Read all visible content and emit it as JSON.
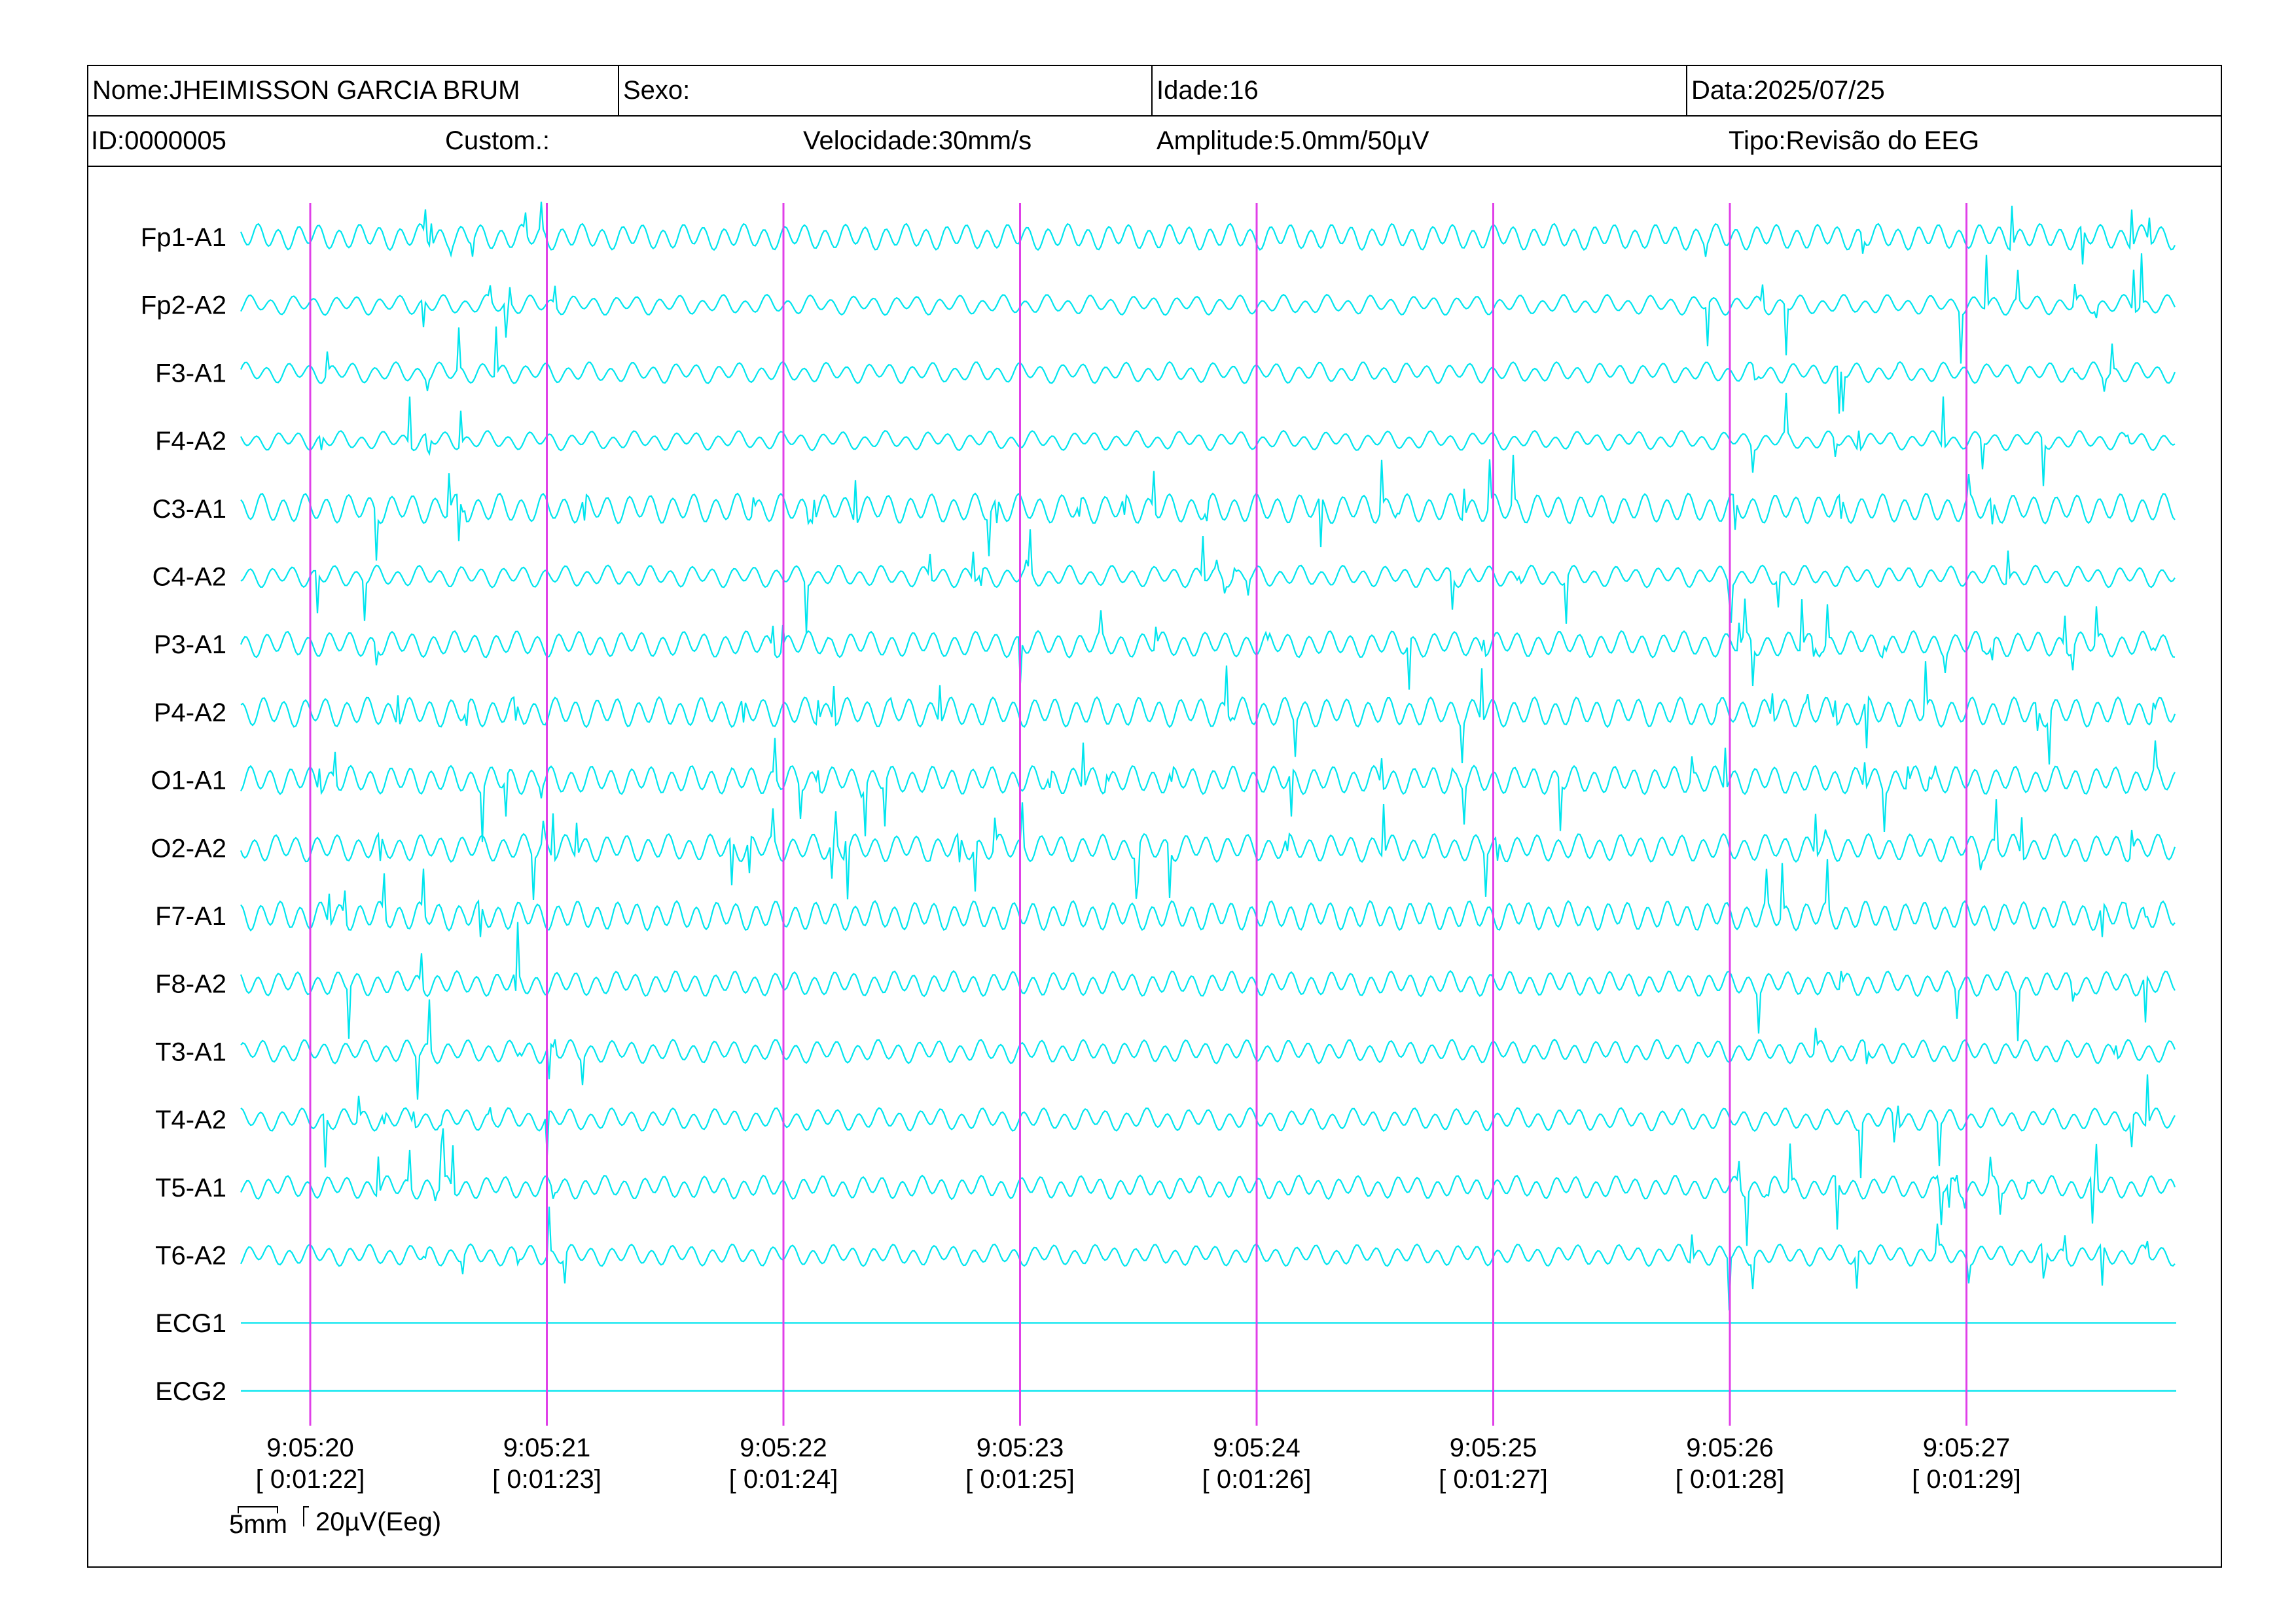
{
  "header": {
    "name": "Nome:JHEIMISSON GARCIA BRUM",
    "sex": "Sexo:",
    "age": "Idade:16",
    "date": "Data:2025/07/25",
    "id": "ID:0000005",
    "custom": "Custom.:",
    "speed": "Velocidade:30mm/s",
    "amplitude": "Amplitude:5.0mm/50µV",
    "type": "Tipo:Revisão do EEG"
  },
  "channels": [
    "Fp1-A1",
    "Fp2-A2",
    "F3-A1",
    "F4-A2",
    "C3-A1",
    "C4-A2",
    "P3-A1",
    "P4-A2",
    "O1-A1",
    "O2-A2",
    "F7-A1",
    "F8-A2",
    "T3-A1",
    "T4-A2",
    "T5-A1",
    "T6-A2",
    "ECG1",
    "ECG2"
  ],
  "time_markers": [
    {
      "time": "9:05:20",
      "elapsed": "[ 0:01:22]"
    },
    {
      "time": "9:05:21",
      "elapsed": "[ 0:01:23]"
    },
    {
      "time": "9:05:22",
      "elapsed": "[ 0:01:24]"
    },
    {
      "time": "9:05:23",
      "elapsed": "[ 0:01:25]"
    },
    {
      "time": "9:05:24",
      "elapsed": "[ 0:01:26]"
    },
    {
      "time": "9:05:25",
      "elapsed": "[ 0:01:27]"
    },
    {
      "time": "9:05:26",
      "elapsed": "[ 0:01:28]"
    },
    {
      "time": "9:05:27",
      "elapsed": "[ 0:01:29]"
    }
  ],
  "scale": {
    "time_bar": "5mm",
    "amplitude_bar": "20µV(Eeg)"
  },
  "colors": {
    "trace": "#00e5ee",
    "marker": "#e040e8",
    "frame": "#000000"
  }
}
